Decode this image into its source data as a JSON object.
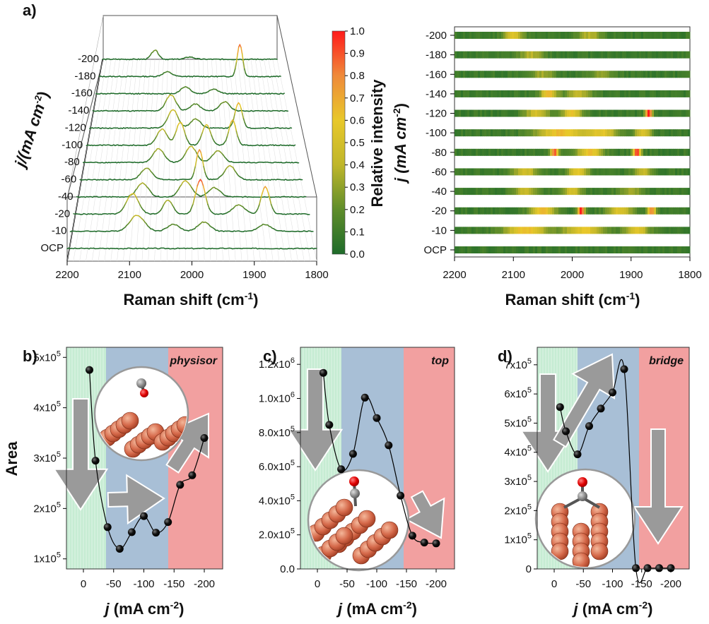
{
  "panel_labels": {
    "a": "a)",
    "b": "b)",
    "c": "c)",
    "d": "d)"
  },
  "colors": {
    "low": "#1e6b2a",
    "mid": "#d8c52a",
    "high": "#ff1a1a",
    "zone_green": "#c6ecd3",
    "zone_blue": "#a8bfd6",
    "zone_red": "#f2a0a0"
  },
  "chart_data": [
    {
      "id": "a-waterfall",
      "type": "line",
      "xlabel": "Raman shift (cm",
      "xlabel_sup": "-1",
      "xlabel_end": ")",
      "ylabel": "j/(mA cm",
      "ylabel_sup": "-2",
      "ylabel_end": ")",
      "xlim": [
        2200,
        1800
      ],
      "x_ticks": [
        "2200",
        "2100",
        "2000",
        "1900",
        "1800"
      ],
      "series_labels": [
        "OCP",
        "-10",
        "-20",
        "-40",
        "-60",
        "-80",
        "-100",
        "-120",
        "-140",
        "-160",
        "-180",
        "-200"
      ],
      "peaks": [
        [],
        [
          [
            2090,
            0.35,
            12
          ],
          [
            2030,
            0.15,
            10
          ],
          [
            1980,
            0.2,
            10
          ],
          [
            1880,
            0.15,
            10
          ]
        ],
        [
          [
            2100,
            0.45,
            10
          ],
          [
            2040,
            0.3,
            8
          ],
          [
            1985,
            0.75,
            8
          ],
          [
            1920,
            0.2,
            10
          ],
          [
            1875,
            0.6,
            7
          ]
        ],
        [
          [
            2085,
            0.3,
            10
          ],
          [
            2010,
            0.35,
            10
          ],
          [
            1960,
            0.2,
            10
          ]
        ],
        [
          [
            2080,
            0.25,
            10
          ],
          [
            1985,
            0.65,
            6
          ],
          [
            1930,
            0.3,
            10
          ]
        ],
        [
          [
            2060,
            0.3,
            10
          ],
          [
            2000,
            0.35,
            10
          ],
          [
            1950,
            0.25,
            10
          ]
        ],
        [
          [
            2055,
            0.35,
            10
          ],
          [
            2020,
            0.5,
            8
          ],
          [
            1970,
            0.45,
            8
          ],
          [
            1920,
            0.55,
            7
          ]
        ],
        [
          [
            2035,
            0.4,
            10
          ],
          [
            1990,
            0.2,
            10
          ],
          [
            1905,
            0.55,
            7
          ]
        ],
        [
          [
            2040,
            0.35,
            10
          ],
          [
            1990,
            0.15,
            10
          ],
          [
            1930,
            0.2,
            10
          ]
        ],
        [
          [
            2010,
            0.15,
            10
          ],
          [
            1950,
            0.1,
            10
          ]
        ],
        [
          [
            2050,
            0.1,
            10
          ],
          [
            1890,
            0.7,
            6
          ]
        ],
        [
          [
            2080,
            0.2,
            8
          ],
          [
            2000,
            0.05,
            10
          ]
        ]
      ],
      "colorbar": {
        "title": "Relative intensity",
        "min": 0.0,
        "max": 1.0,
        "ticks": [
          "0.0",
          "0.1",
          "0.2",
          "0.3",
          "0.4",
          "0.5",
          "0.6",
          "0.7",
          "0.8",
          "0.9",
          "1.0"
        ]
      }
    },
    {
      "id": "a-heatmap",
      "type": "heatmap",
      "xlabel": "Raman shift (cm",
      "xlabel_sup": "-1",
      "xlabel_end": ")",
      "ylabel": "j (mA cm",
      "ylabel_sup": "-2",
      "ylabel_end": ")",
      "xlim": [
        2200,
        1800
      ],
      "x_ticks": [
        "2200",
        "2100",
        "2000",
        "1900",
        "1800"
      ],
      "rows": [
        "-200",
        "-180",
        "-160",
        "-140",
        "-120",
        "-100",
        "-80",
        "-60",
        "-40",
        "-20",
        "-10",
        "OCP"
      ],
      "hotspots": [
        [
          [
            2100,
            0.45,
            12
          ],
          [
            1970,
            0.3,
            15
          ]
        ],
        [
          [
            2070,
            0.3,
            15
          ]
        ],
        [
          [
            2050,
            0.25,
            15
          ],
          [
            1950,
            0.2,
            15
          ]
        ],
        [
          [
            2040,
            0.55,
            10
          ],
          [
            1990,
            0.35,
            15
          ]
        ],
        [
          [
            2060,
            0.4,
            15
          ],
          [
            2000,
            0.5,
            12
          ],
          [
            1870,
            0.95,
            4
          ]
        ],
        [
          [
            2020,
            0.55,
            30
          ],
          [
            1950,
            0.45,
            20
          ],
          [
            1880,
            0.45,
            10
          ]
        ],
        [
          [
            2030,
            0.8,
            5
          ],
          [
            1970,
            0.55,
            15
          ],
          [
            1890,
            0.85,
            5
          ]
        ],
        [
          [
            2080,
            0.4,
            15
          ],
          [
            1990,
            0.5,
            12
          ],
          [
            1880,
            0.35,
            12
          ]
        ],
        [
          [
            2080,
            0.35,
            15
          ],
          [
            2000,
            0.4,
            12
          ],
          [
            1900,
            0.25,
            15
          ]
        ],
        [
          [
            2050,
            0.55,
            15
          ],
          [
            1985,
            0.95,
            4
          ],
          [
            1920,
            0.45,
            15
          ],
          [
            1865,
            0.75,
            5
          ]
        ],
        [
          [
            2080,
            0.55,
            25
          ],
          [
            1980,
            0.5,
            25
          ],
          [
            1890,
            0.45,
            15
          ]
        ],
        []
      ]
    },
    {
      "id": "b",
      "type": "scatter",
      "tag": "physisor",
      "ylabel": "Area",
      "xlabel": "j",
      "xlabel_rest": " (mA cm",
      "xlabel_sup": "-2",
      "xlabel_end": ")",
      "x_ticks": [
        "0",
        "-50",
        "-100",
        "-150",
        "-200"
      ],
      "y_ticks": [
        "1x10",
        "2x10",
        "3x10",
        "4x10",
        "5x10"
      ],
      "y_tick_sup": "5",
      "ylim": [
        80000,
        520000
      ],
      "x": [
        -10,
        -20,
        -40,
        -60,
        -80,
        -100,
        -120,
        -140,
        -160,
        -180,
        -200
      ],
      "y": [
        475000,
        295000,
        163000,
        120000,
        153000,
        185000,
        152000,
        173000,
        247000,
        266000,
        340000
      ]
    },
    {
      "id": "c",
      "type": "scatter",
      "tag": "top",
      "xlabel": "j",
      "xlabel_rest": " (mA cm",
      "xlabel_sup": "-2",
      "xlabel_end": ")",
      "x_ticks": [
        "0",
        "-50",
        "-100",
        "-150",
        "-200"
      ],
      "y_ticks": [
        "0.0",
        "2.0x10",
        "4.0x10",
        "6.0x10",
        "8.0x10",
        "1.0x10",
        "1.2x10"
      ],
      "y_tick_sups": [
        "",
        "5",
        "5",
        "5",
        "5",
        "6",
        "6"
      ],
      "ylim": [
        0,
        1300000
      ],
      "x": [
        -10,
        -20,
        -40,
        -60,
        -80,
        -100,
        -120,
        -140,
        -160,
        -180,
        -200
      ],
      "y": [
        1150000,
        845000,
        585000,
        675000,
        1005000,
        885000,
        725000,
        430000,
        195000,
        155000,
        150000
      ]
    },
    {
      "id": "d",
      "type": "scatter",
      "tag": "bridge",
      "xlabel": "j",
      "xlabel_rest": " (mA cm",
      "xlabel_sup": "-2",
      "xlabel_end": ")",
      "x_ticks": [
        "0",
        "-50",
        "-100",
        "-150",
        "-200"
      ],
      "y_ticks": [
        "0",
        "1x10",
        "2x10",
        "3x10",
        "4x10",
        "5x10",
        "6x10",
        "7x10"
      ],
      "y_tick_sup": "5",
      "ylim": [
        0,
        760000
      ],
      "x": [
        -10,
        -20,
        -40,
        -60,
        -80,
        -100,
        -120,
        -140,
        -160,
        -180,
        -200
      ],
      "y": [
        555000,
        472000,
        393000,
        490000,
        550000,
        605000,
        685000,
        3000,
        3000,
        3000,
        3000
      ]
    }
  ]
}
